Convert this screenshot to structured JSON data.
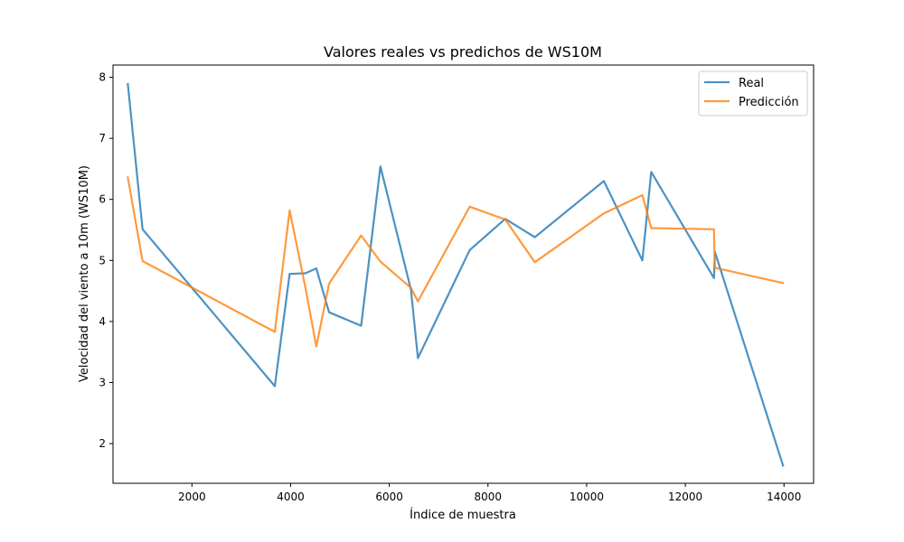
{
  "chart_data": {
    "type": "line",
    "title": "Valores reales vs predichos de WS10M",
    "xlabel": "Índice de muestra",
    "ylabel": "Velocidad del viento a 10m (WS10M)",
    "xlim": [
      400,
      14600
    ],
    "ylim": [
      1.35,
      8.2
    ],
    "xticks": [
      2000,
      4000,
      6000,
      8000,
      10000,
      12000,
      14000
    ],
    "yticks": [
      2,
      3,
      4,
      5,
      6,
      7,
      8
    ],
    "grid": false,
    "legend": "top-right",
    "x": [
      700,
      1000,
      3680,
      3980,
      4300,
      4520,
      4780,
      5430,
      5820,
      6440,
      6580,
      7630,
      8350,
      8950,
      10350,
      11130,
      11310,
      12580,
      12600,
      13980
    ],
    "series": [
      {
        "name": "Real",
        "color": "#1f77b4",
        "values": [
          7.89,
          5.51,
          2.94,
          4.78,
          4.79,
          4.87,
          4.15,
          3.93,
          6.54,
          4.52,
          3.4,
          5.17,
          5.68,
          5.38,
          6.3,
          5.0,
          6.45,
          4.71,
          5.14,
          1.64
        ]
      },
      {
        "name": "Predicción",
        "color": "#ff7f0e",
        "values": [
          6.36,
          4.99,
          3.83,
          5.82,
          4.55,
          3.59,
          4.62,
          5.41,
          4.98,
          4.55,
          4.33,
          5.88,
          5.67,
          4.97,
          5.77,
          6.07,
          5.53,
          5.51,
          4.88,
          4.63
        ]
      }
    ]
  }
}
